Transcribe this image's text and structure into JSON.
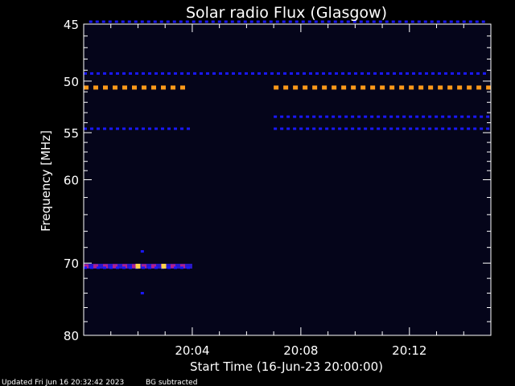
{
  "chart_data": {
    "type": "heatmap",
    "title": "Solar radio Flux (Glasgow)",
    "ylabel": "Frequency [MHz]",
    "xlabel": "Start Time (16-Jun-23 20:00:00)",
    "y_ticks": [
      "45",
      "50",
      "55",
      "60",
      "70",
      "80"
    ],
    "y_tick_values": [
      45,
      50,
      55,
      60,
      70,
      80
    ],
    "x_ticks": [
      "20:04",
      "20:08",
      "20:12"
    ],
    "x_tick_minutes": [
      4,
      8,
      12
    ],
    "x_range_minutes": [
      0,
      15
    ],
    "y_range_mhz": [
      45,
      80
    ],
    "y_scale": "log",
    "colors": {
      "background": "#000000",
      "plot_background": "#05051a",
      "axes": "#ffffff",
      "low": "#1a18ff",
      "mid": "#b0208a",
      "high": "#ff9a1a",
      "peak": "#ffd24a"
    },
    "emission_bands": [
      {
        "freq": 44.8,
        "t_start": 0.2,
        "t_end": 14.8,
        "level": "low"
      },
      {
        "freq": 49.3,
        "t_start": 0.0,
        "t_end": 15.0,
        "level": "low"
      },
      {
        "freq": 50.6,
        "t_start": 0.0,
        "t_end": 4.0,
        "level": "high"
      },
      {
        "freq": 50.6,
        "t_start": 7.0,
        "t_end": 15.0,
        "level": "high"
      },
      {
        "freq": 53.4,
        "t_start": 7.0,
        "t_end": 15.0,
        "level": "low"
      },
      {
        "freq": 54.6,
        "t_start": 0.0,
        "t_end": 4.0,
        "level": "low"
      },
      {
        "freq": 54.6,
        "t_start": 7.0,
        "t_end": 15.0,
        "level": "low"
      },
      {
        "freq": 68.5,
        "t_start": 2.1,
        "t_end": 2.4,
        "level": "low"
      },
      {
        "freq": 70.4,
        "t_start": 0.0,
        "t_end": 4.0,
        "level": "mid"
      },
      {
        "freq": 70.6,
        "t_start": 0.0,
        "t_end": 4.0,
        "level": "low"
      },
      {
        "freq": 74.0,
        "t_start": 2.1,
        "t_end": 2.4,
        "level": "low"
      }
    ],
    "hot_spots": [
      {
        "freq": 70.4,
        "t": 2.0
      },
      {
        "freq": 70.4,
        "t": 2.95
      }
    ]
  },
  "footer": {
    "updated": "Updated Fri Jun 16 20:32:42 2023",
    "bg_note": "BG subtracted"
  }
}
